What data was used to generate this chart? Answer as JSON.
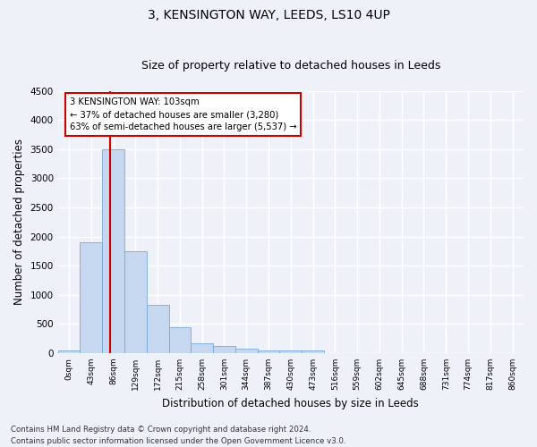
{
  "title1": "3, KENSINGTON WAY, LEEDS, LS10 4UP",
  "title2": "Size of property relative to detached houses in Leeds",
  "xlabel": "Distribution of detached houses by size in Leeds",
  "ylabel": "Number of detached properties",
  "bar_labels": [
    "0sqm",
    "43sqm",
    "86sqm",
    "129sqm",
    "172sqm",
    "215sqm",
    "258sqm",
    "301sqm",
    "344sqm",
    "387sqm",
    "430sqm",
    "473sqm",
    "516sqm",
    "559sqm",
    "602sqm",
    "645sqm",
    "688sqm",
    "731sqm",
    "774sqm",
    "817sqm",
    "860sqm"
  ],
  "bar_values": [
    50,
    1900,
    3500,
    1750,
    830,
    450,
    175,
    120,
    70,
    40,
    40,
    50,
    0,
    0,
    0,
    0,
    0,
    0,
    0,
    0,
    0
  ],
  "bar_color": "#c5d8f0",
  "bar_edgecolor": "#7aa8d4",
  "vline_x": 2.35,
  "vline_color": "#cc0000",
  "annotation_text": "3 KENSINGTON WAY: 103sqm\n← 37% of detached houses are smaller (3,280)\n63% of semi-detached houses are larger (5,537) →",
  "annotation_box_color": "#ffffff",
  "annotation_box_edgecolor": "#cc0000",
  "ylim": [
    0,
    4500
  ],
  "yticks": [
    0,
    500,
    1000,
    1500,
    2000,
    2500,
    3000,
    3500,
    4000,
    4500
  ],
  "background_color": "#eef2f8",
  "grid_color": "#ffffff",
  "footer1": "Contains HM Land Registry data © Crown copyright and database right 2024.",
  "footer2": "Contains public sector information licensed under the Open Government Licence v3.0.",
  "title1_fontsize": 10,
  "title2_fontsize": 9,
  "xlabel_fontsize": 8.5,
  "ylabel_fontsize": 8.5
}
